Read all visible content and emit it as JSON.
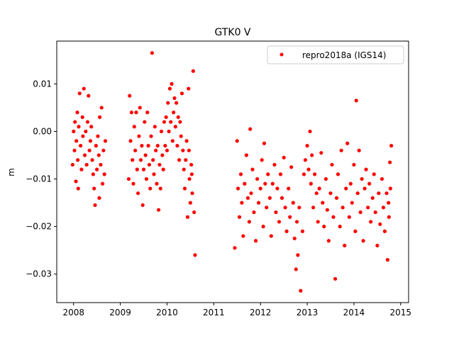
{
  "chart_data": {
    "type": "scatter",
    "title": "GTK0 V",
    "xlabel": "",
    "ylabel": "m",
    "xlim": [
      2007.64,
      2015.17
    ],
    "ylim": [
      -0.036,
      0.019
    ],
    "xticks": [
      2008,
      2009,
      2010,
      2011,
      2012,
      2013,
      2014,
      2015
    ],
    "xtick_labels": [
      "2008",
      "2009",
      "2010",
      "2011",
      "2012",
      "2013",
      "2014",
      "2015"
    ],
    "yticks": [
      0.01,
      0.0,
      -0.01,
      -0.02,
      -0.03
    ],
    "ytick_labels": [
      "0.01",
      "0.00",
      "−0.01",
      "−0.02",
      "−0.03"
    ],
    "grid": false,
    "legend": {
      "placement": "top-right",
      "entries": [
        "repro2018a (IGS14)"
      ]
    },
    "series": [
      {
        "name": "repro2018a (IGS14)",
        "color": "#ff0000",
        "marker": "circle",
        "points": [
          [
            2007.98,
            -0.007
          ],
          [
            2008.0,
            0.0
          ],
          [
            2008.02,
            -0.004
          ],
          [
            2008.03,
            0.002
          ],
          [
            2008.05,
            -0.0105
          ],
          [
            2008.06,
            -0.002
          ],
          [
            2008.08,
            0.004
          ],
          [
            2008.09,
            -0.006
          ],
          [
            2008.1,
            -0.012
          ],
          [
            2008.11,
            0.001
          ],
          [
            2008.13,
            0.008
          ],
          [
            2008.15,
            -0.003
          ],
          [
            2008.17,
            -0.008
          ],
          [
            2008.19,
            0.003
          ],
          [
            2008.2,
            -0.001
          ],
          [
            2008.22,
            0.009
          ],
          [
            2008.24,
            -0.005
          ],
          [
            2008.26,
            0.0
          ],
          [
            2008.28,
            -0.007
          ],
          [
            2008.3,
            0.002
          ],
          [
            2008.32,
            0.0075
          ],
          [
            2008.34,
            -0.004
          ],
          [
            2008.36,
            -0.002
          ],
          [
            2008.38,
            0.001
          ],
          [
            2008.4,
            -0.006
          ],
          [
            2008.42,
            -0.009
          ],
          [
            2008.44,
            -0.012
          ],
          [
            2008.46,
            -0.0155
          ],
          [
            2008.48,
            -0.003
          ],
          [
            2008.5,
            -0.008
          ],
          [
            2008.52,
            -0.001
          ],
          [
            2008.54,
            -0.005
          ],
          [
            2008.56,
            0.003
          ],
          [
            2008.58,
            -0.007
          ],
          [
            2008.6,
            0.005
          ],
          [
            2008.62,
            -0.011
          ],
          [
            2008.64,
            -0.004
          ],
          [
            2008.66,
            -0.009
          ],
          [
            2008.68,
            -0.002
          ],
          [
            2008.55,
            -0.014
          ],
          [
            2009.18,
            -0.01
          ],
          [
            2009.2,
            0.0075
          ],
          [
            2009.22,
            -0.002
          ],
          [
            2009.24,
            0.004
          ],
          [
            2009.26,
            -0.006
          ],
          [
            2009.28,
            -0.011
          ],
          [
            2009.3,
            0.001
          ],
          [
            2009.32,
            -0.004
          ],
          [
            2009.34,
            0.004
          ],
          [
            2009.36,
            -0.008
          ],
          [
            2009.38,
            -0.013
          ],
          [
            2009.4,
            -0.001
          ],
          [
            2009.42,
            0.005
          ],
          [
            2009.44,
            -0.006
          ],
          [
            2009.46,
            -0.003
          ],
          [
            2009.48,
            -0.0155
          ],
          [
            2009.5,
            -0.008
          ],
          [
            2009.52,
            0.002
          ],
          [
            2009.54,
            -0.005
          ],
          [
            2009.56,
            -0.01
          ],
          [
            2009.58,
            0.004
          ],
          [
            2009.6,
            -0.003
          ],
          [
            2009.62,
            -0.007
          ],
          [
            2009.64,
            -0.012
          ],
          [
            2009.66,
            -0.001
          ],
          [
            2009.68,
            0.0165
          ],
          [
            2009.7,
            -0.006
          ],
          [
            2009.72,
            -0.009
          ],
          [
            2009.74,
            0.001
          ],
          [
            2009.76,
            -0.004
          ],
          [
            2009.78,
            -0.011
          ],
          [
            2009.8,
            -0.003
          ],
          [
            2009.82,
            -0.0165
          ],
          [
            2009.84,
            -0.007
          ],
          [
            2009.86,
            -0.012
          ],
          [
            2009.88,
            0.0
          ],
          [
            2009.9,
            -0.005
          ],
          [
            2009.92,
            -0.008
          ],
          [
            2009.94,
            0.002
          ],
          [
            2009.96,
            -0.003
          ],
          [
            2009.98,
            0.003
          ],
          [
            2010.0,
            -0.004
          ],
          [
            2010.02,
            0.006
          ],
          [
            2010.04,
            0.0
          ],
          [
            2010.06,
            0.009
          ],
          [
            2010.08,
            0.002
          ],
          [
            2010.1,
            0.01
          ],
          [
            2010.12,
            -0.002
          ],
          [
            2010.14,
            0.004
          ],
          [
            2010.16,
            0.007
          ],
          [
            2010.18,
            0.001
          ],
          [
            2010.2,
            0.006
          ],
          [
            2010.22,
            -0.003
          ],
          [
            2010.24,
            0.003
          ],
          [
            2010.26,
            -0.006
          ],
          [
            2010.28,
            0.002
          ],
          [
            2010.3,
            -0.001
          ],
          [
            2010.32,
            0.008
          ],
          [
            2010.34,
            -0.004
          ],
          [
            2010.36,
            -0.008
          ],
          [
            2010.38,
            -0.012
          ],
          [
            2010.4,
            -0.006
          ],
          [
            2010.42,
            -0.002
          ],
          [
            2010.44,
            -0.018
          ],
          [
            2010.46,
            0.009
          ],
          [
            2010.48,
            -0.01
          ],
          [
            2010.5,
            -0.015
          ],
          [
            2010.52,
            -0.007
          ],
          [
            2010.54,
            -0.013
          ],
          [
            2010.56,
            0.0127
          ],
          [
            2010.58,
            -0.017
          ],
          [
            2010.6,
            -0.026
          ],
          [
            2010.47,
            -0.004
          ],
          [
            2010.53,
            -0.009
          ],
          [
            2011.45,
            -0.0245
          ],
          [
            2011.5,
            -0.002
          ],
          [
            2011.52,
            -0.012
          ],
          [
            2011.55,
            -0.018
          ],
          [
            2011.58,
            -0.009
          ],
          [
            2011.6,
            -0.015
          ],
          [
            2011.63,
            -0.022
          ],
          [
            2011.66,
            -0.011
          ],
          [
            2011.7,
            -0.005
          ],
          [
            2011.73,
            -0.014
          ],
          [
            2011.76,
            -0.019
          ],
          [
            2011.78,
            0.0005
          ],
          [
            2011.8,
            -0.013
          ],
          [
            2011.83,
            -0.008
          ],
          [
            2011.86,
            -0.017
          ],
          [
            2011.9,
            -0.023
          ],
          [
            2011.93,
            -0.01
          ],
          [
            2011.96,
            -0.015
          ],
          [
            2012.0,
            -0.012
          ],
          [
            2012.03,
            -0.006
          ],
          [
            2012.06,
            -0.02
          ],
          [
            2012.08,
            -0.0025
          ],
          [
            2012.1,
            -0.011
          ],
          [
            2012.13,
            -0.016
          ],
          [
            2012.16,
            -0.009
          ],
          [
            2012.2,
            -0.014
          ],
          [
            2012.23,
            -0.022
          ],
          [
            2012.26,
            -0.011
          ],
          [
            2012.3,
            -0.007
          ],
          [
            2012.33,
            -0.017
          ],
          [
            2012.36,
            -0.012
          ],
          [
            2012.4,
            -0.019
          ],
          [
            2012.43,
            -0.009
          ],
          [
            2012.46,
            -0.014
          ],
          [
            2012.5,
            -0.0055
          ],
          [
            2012.53,
            -0.016
          ],
          [
            2012.56,
            -0.021
          ],
          [
            2012.6,
            -0.012
          ],
          [
            2012.63,
            -0.018
          ],
          [
            2012.66,
            -0.0075
          ],
          [
            2012.7,
            -0.015
          ],
          [
            2012.73,
            -0.0225
          ],
          [
            2012.76,
            -0.029
          ],
          [
            2012.78,
            -0.019
          ],
          [
            2012.8,
            -0.026
          ],
          [
            2012.83,
            -0.016
          ],
          [
            2012.86,
            -0.0335
          ],
          [
            2012.9,
            -0.021
          ],
          [
            2012.93,
            -0.009
          ],
          [
            2012.96,
            -0.006
          ],
          [
            2013.0,
            -0.003
          ],
          [
            2013.03,
            -0.008
          ],
          [
            2013.06,
            0.0
          ],
          [
            2013.08,
            -0.011
          ],
          [
            2013.1,
            -0.005
          ],
          [
            2013.13,
            -0.016
          ],
          [
            2013.16,
            -0.009
          ],
          [
            2013.2,
            -0.013
          ],
          [
            2013.23,
            -0.019
          ],
          [
            2013.26,
            -0.012
          ],
          [
            2013.3,
            -0.0045
          ],
          [
            2013.33,
            -0.015
          ],
          [
            2013.36,
            -0.02
          ],
          [
            2013.4,
            -0.01
          ],
          [
            2013.43,
            -0.0165
          ],
          [
            2013.46,
            -0.023
          ],
          [
            2013.5,
            -0.013
          ],
          [
            2013.53,
            -0.007
          ],
          [
            2013.56,
            -0.018
          ],
          [
            2013.6,
            -0.031
          ],
          [
            2013.63,
            -0.014
          ],
          [
            2013.66,
            -0.009
          ],
          [
            2013.7,
            -0.02
          ],
          [
            2013.73,
            -0.004
          ],
          [
            2013.76,
            -0.016
          ],
          [
            2013.8,
            -0.024
          ],
          [
            2013.83,
            -0.012
          ],
          [
            2013.86,
            -0.0025
          ],
          [
            2013.9,
            -0.018
          ],
          [
            2013.93,
            -0.011
          ],
          [
            2013.96,
            -0.015
          ],
          [
            2014.0,
            -0.007
          ],
          [
            2014.03,
            -0.021
          ],
          [
            2014.05,
            0.0065
          ],
          [
            2014.08,
            -0.013
          ],
          [
            2014.11,
            -0.004
          ],
          [
            2014.14,
            -0.017
          ],
          [
            2014.17,
            -0.01
          ],
          [
            2014.2,
            -0.023
          ],
          [
            2014.23,
            -0.012
          ],
          [
            2014.26,
            -0.008
          ],
          [
            2014.3,
            -0.016
          ],
          [
            2014.33,
            -0.011
          ],
          [
            2014.36,
            -0.019
          ],
          [
            2014.4,
            -0.014
          ],
          [
            2014.43,
            -0.009
          ],
          [
            2014.46,
            -0.017
          ],
          [
            2014.5,
            -0.024
          ],
          [
            2014.53,
            -0.013
          ],
          [
            2014.56,
            -0.0195
          ],
          [
            2014.6,
            -0.01
          ],
          [
            2014.63,
            -0.016
          ],
          [
            2014.66,
            -0.021
          ],
          [
            2014.7,
            -0.013
          ],
          [
            2014.72,
            -0.027
          ],
          [
            2014.75,
            -0.018
          ],
          [
            2014.78,
            -0.012
          ],
          [
            2014.8,
            -0.003
          ],
          [
            2014.77,
            -0.0065
          ],
          [
            2014.74,
            -0.015
          ]
        ]
      }
    ]
  }
}
